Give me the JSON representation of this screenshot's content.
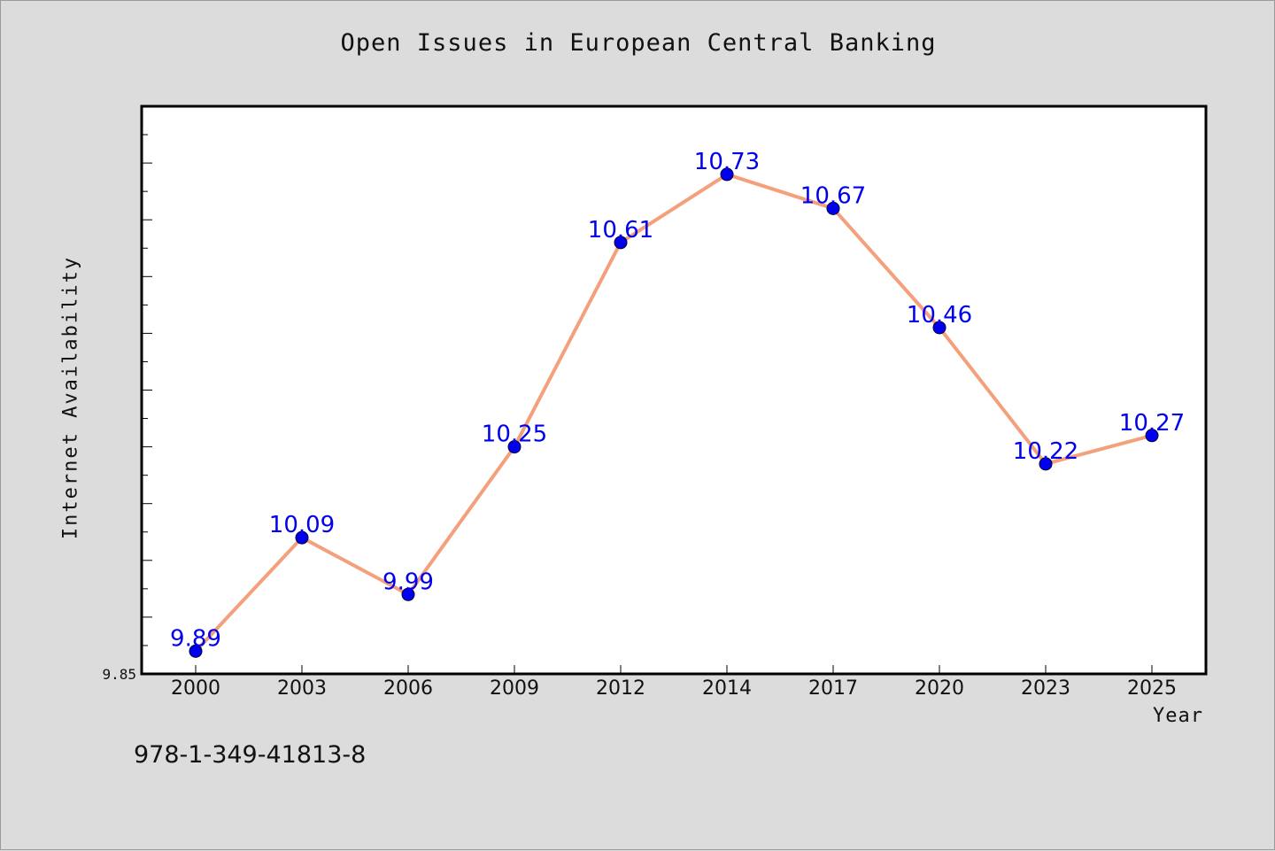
{
  "chart_data": {
    "type": "line",
    "title": "Open Issues in European Central Banking",
    "xlabel": "Year",
    "ylabel": "Internet Availability",
    "categories": [
      "2000",
      "2003",
      "2006",
      "2009",
      "2012",
      "2014",
      "2017",
      "2020",
      "2023",
      "2025"
    ],
    "series": [
      {
        "values": [
          9.89,
          10.09,
          9.99,
          10.25,
          10.61,
          10.73,
          10.67,
          10.46,
          10.22,
          10.27
        ],
        "labels": [
          "9.89",
          "10.09",
          "9.99",
          "10.25",
          "10.61",
          "10.73",
          "10.67",
          "10.46",
          "10.22",
          "10.27"
        ]
      }
    ],
    "ylim": [
      9.85,
      10.85
    ],
    "yticks_labeled": [
      "9.85"
    ],
    "grid": false,
    "colors": {
      "line": "#f4a07c",
      "marker": "#0000ee",
      "data_label": "#0000ee",
      "plot_background": "#ffffff",
      "figure_background": "#dcdcdc"
    }
  },
  "footer_text": "978-1-349-41813-8"
}
